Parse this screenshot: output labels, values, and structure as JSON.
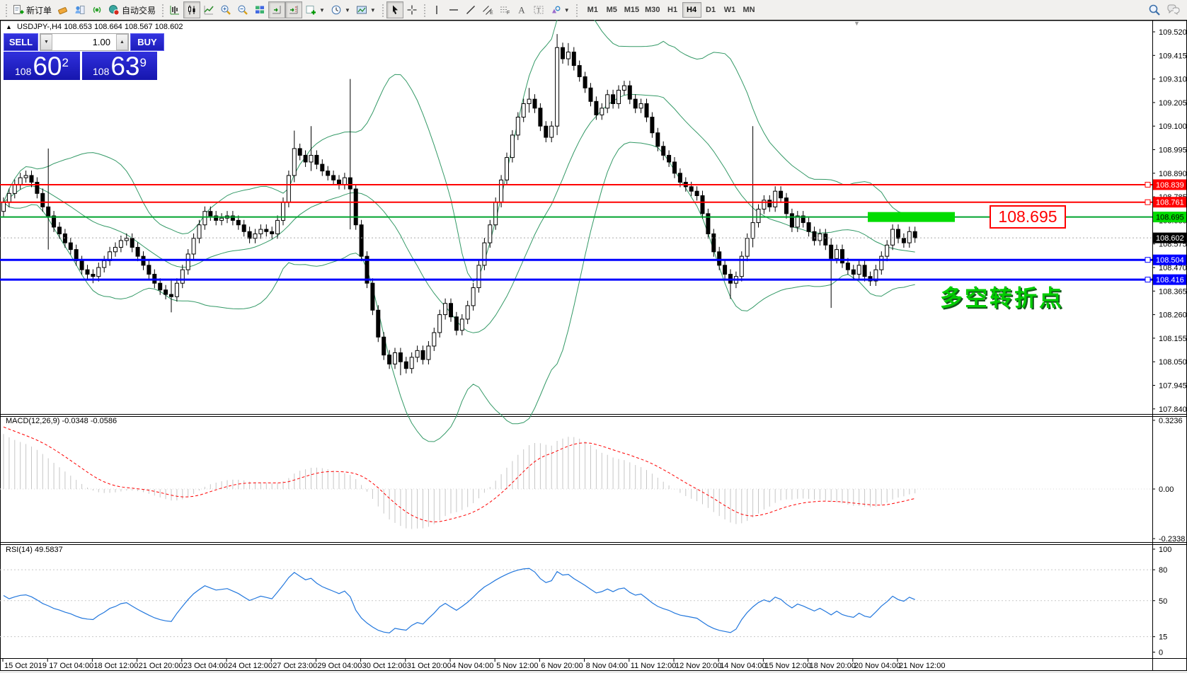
{
  "toolbar": {
    "new_order_label": "新订单",
    "auto_trading_label": "自动交易",
    "timeframes": [
      "M1",
      "M5",
      "M15",
      "M30",
      "H1",
      "H4",
      "D1",
      "W1",
      "MN"
    ],
    "active_timeframe": "H4",
    "icons": {
      "new-order-icon": "document-plus",
      "eraser-icon": "eraser",
      "profiles-icon": "profile-chart",
      "signals-icon": "signal-waves",
      "auto-trading-icon": "autotrade-ball",
      "bar-chart-icon": "ohlc-bars",
      "candlestick-icon": "candles",
      "line-chart-icon": "polyline",
      "zoom-in-icon": "magnifier-plus",
      "zoom-out-icon": "magnifier-minus",
      "tile-windows-icon": "tiles",
      "auto-scroll-icon": "axis-arrow",
      "chart-shift-icon": "axis-arrow-shift",
      "indicators-icon": "green-plus",
      "periods-icon": "clock",
      "templates-icon": "picture",
      "cursor-icon": "pointer-arrow",
      "crosshair-icon": "crosshair",
      "vertical-line-icon": "|",
      "horizontal-line-icon": "—",
      "trendline-icon": "/",
      "channel-icon": "double-line-E",
      "fibonacci-icon": "dashes-F",
      "text-icon": "A",
      "label-icon": "T-box",
      "shapes-icon": "triangle-circle",
      "search-icon": "magnifier",
      "chat-icon": "speech-bubbles"
    }
  },
  "chart_header": {
    "collapse_arrow": "▲",
    "symbol_period": "USDJPY-,H4",
    "ohlc": "108.653 108.664 108.567 108.602"
  },
  "trade_panel": {
    "sell_label": "SELL",
    "buy_label": "BUY",
    "volume": "1.00",
    "sell_price": {
      "prefix": "108",
      "big": "60",
      "sup": "2"
    },
    "buy_price": {
      "prefix": "108",
      "big": "63",
      "sup": "9"
    }
  },
  "annotations": {
    "turning_point": {
      "text": "多空转折点",
      "color": "#00CC00"
    },
    "price_callout": {
      "text": "108.695",
      "color": "#FF0000"
    },
    "highlight_bar": {
      "color": "#00DC00",
      "price": 108.695,
      "x": 1226,
      "width": 123,
      "height": 14
    }
  },
  "indicators": {
    "macd": {
      "name": "MACD(12,26,9)",
      "values": "-0.0348 -0.0586",
      "scale_labels": [
        "0.3236",
        "0.00",
        "-0.2338"
      ],
      "histogram_color": "#c6c6c6",
      "signal_color": "#ff0000"
    },
    "rsi": {
      "name": "RSI(14)",
      "value": "49.5837",
      "scale_labels": [
        "100",
        "80",
        "50",
        "15",
        "0"
      ],
      "levels": [
        80,
        50,
        15
      ],
      "line_color": "#2277dd"
    },
    "bollinger": {
      "period": 20,
      "deviation": 2,
      "color": "#339966"
    }
  },
  "chart_data": {
    "type": "candlestick",
    "symbol": "USDJPY",
    "period": "H4",
    "title": "USDJPY-,H4 108.653 108.664 108.567 108.602",
    "ylim": [
      107.84,
      109.52
    ],
    "y_ticks": [
      "109.520",
      "109.415",
      "109.310",
      "109.205",
      "109.100",
      "108.995",
      "108.890",
      "108.785",
      "108.680",
      "108.575",
      "108.470",
      "108.365",
      "108.260",
      "108.155",
      "108.050",
      "107.945",
      "107.840"
    ],
    "x_labels": [
      "15 Oct 2019",
      "17 Oct 04:00",
      "18 Oct 12:00",
      "21 Oct 20:00",
      "23 Oct 04:00",
      "24 Oct 12:00",
      "27 Oct 23:00",
      "29 Oct 04:00",
      "30 Oct 12:00",
      "31 Oct 20:00",
      "4 Nov 04:00",
      "5 Nov 12:00",
      "6 Nov 20:00",
      "8 Nov 04:00",
      "11 Nov 12:00",
      "12 Nov 20:00",
      "14 Nov 04:00",
      "15 Nov 12:00",
      "18 Nov 20:00",
      "20 Nov 04:00",
      "21 Nov 12:00"
    ],
    "open_first": 108.72,
    "closes": [
      108.76,
      108.8,
      108.84,
      108.87,
      108.88,
      108.85,
      108.8,
      108.74,
      108.7,
      108.65,
      108.62,
      108.58,
      108.55,
      108.5,
      108.46,
      108.44,
      108.43,
      108.47,
      108.5,
      108.54,
      108.56,
      108.59,
      108.6,
      108.56,
      108.52,
      108.48,
      108.44,
      108.4,
      108.37,
      108.35,
      108.34,
      108.4,
      108.46,
      108.53,
      108.6,
      108.66,
      108.72,
      108.7,
      108.68,
      108.69,
      108.7,
      108.68,
      108.66,
      108.63,
      108.6,
      108.62,
      108.64,
      108.63,
      108.62,
      108.68,
      108.76,
      108.88,
      109.0,
      108.97,
      108.94,
      108.97,
      108.93,
      108.9,
      108.88,
      108.86,
      108.84,
      108.87,
      108.82,
      108.66,
      108.52,
      108.4,
      108.28,
      108.16,
      108.08,
      108.04,
      108.09,
      108.05,
      108.02,
      108.07,
      108.1,
      108.06,
      108.12,
      108.18,
      108.26,
      108.31,
      108.25,
      108.19,
      108.24,
      108.3,
      108.38,
      108.48,
      108.58,
      108.66,
      108.76,
      108.86,
      108.96,
      109.06,
      109.14,
      109.2,
      109.22,
      109.18,
      109.1,
      109.05,
      109.1,
      109.45,
      109.4,
      109.43,
      109.37,
      109.32,
      109.27,
      109.21,
      109.15,
      109.18,
      109.24,
      109.2,
      109.26,
      109.28,
      109.22,
      109.18,
      109.2,
      109.14,
      109.07,
      109.01,
      108.97,
      108.94,
      108.89,
      108.85,
      108.83,
      108.81,
      108.79,
      108.71,
      108.62,
      108.54,
      108.48,
      108.44,
      108.4,
      108.43,
      108.52,
      108.6,
      108.67,
      108.73,
      108.77,
      108.74,
      108.81,
      108.78,
      108.71,
      108.65,
      108.7,
      108.67,
      108.63,
      108.59,
      108.62,
      108.57,
      108.51,
      108.55,
      108.49,
      108.46,
      108.44,
      108.48,
      108.43,
      108.41,
      108.46,
      108.52,
      108.57,
      108.64,
      108.6,
      108.58,
      108.63,
      108.602
    ],
    "wicks": {
      "8": [
        109.0,
        108.55
      ],
      "16": [
        108.46,
        108.4
      ],
      "30": [
        108.42,
        108.27
      ],
      "52": [
        109.08,
        108.85
      ],
      "55": [
        109.1,
        108.9
      ],
      "62": [
        109.31,
        108.64
      ],
      "71": [
        108.08,
        107.99
      ],
      "94": [
        109.27,
        109.16
      ],
      "99": [
        109.51,
        109.06
      ],
      "101": [
        109.47,
        109.37
      ],
      "130": [
        108.46,
        108.33
      ],
      "134": [
        109.1,
        108.56
      ],
      "148": [
        108.6,
        108.29
      ]
    },
    "levels": [
      {
        "price": 108.839,
        "label": "108.839",
        "color": "#FF0000",
        "width": 2,
        "label_bg": "#FF0000",
        "text_color": "#FFFFFF"
      },
      {
        "price": 108.761,
        "label": "108.761",
        "color": "#FF0000",
        "width": 2,
        "label_bg": "#FF0000",
        "text_color": "#FFFFFF"
      },
      {
        "price": 108.695,
        "label": "108.695",
        "color": "#00A32E",
        "width": 2,
        "label_bg": "#00DC00",
        "text_color": "#000000"
      },
      {
        "price": 108.504,
        "label": "108.504",
        "color": "#0000FF",
        "width": 3,
        "label_bg": "#0000FF",
        "text_color": "#FFFFFF"
      },
      {
        "price": 108.416,
        "label": "108.416",
        "color": "#0000FF",
        "width": 3,
        "label_bg": "#0000FF",
        "text_color": "#FFFFFF"
      }
    ],
    "current_price": {
      "value": 108.602,
      "label": "108.602"
    }
  }
}
